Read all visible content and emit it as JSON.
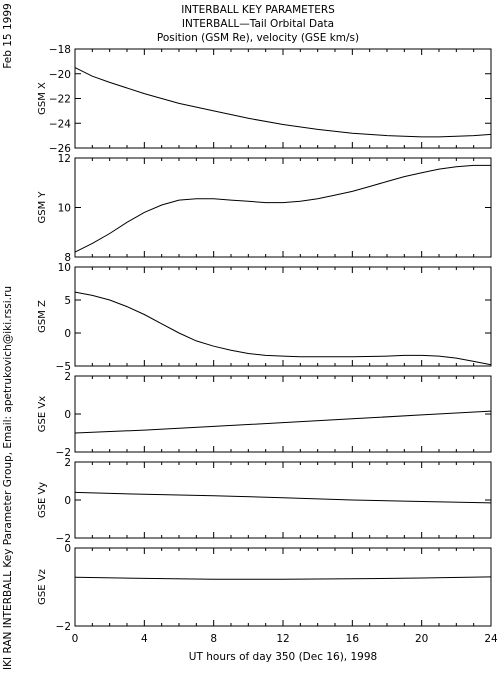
{
  "page": {
    "title_lines": [
      "INTERBALL KEY PARAMETERS",
      "INTERBALL—Tail Orbital Data",
      "Position (GSM Re), velocity (GSE km/s)"
    ],
    "date_label": "Feb 15 1999",
    "credit": "IKI RAN INTERBALL Key Parameter Group, Email: apetrukovich@iki.rssi.ru"
  },
  "chart_data": [
    {
      "type": "line",
      "ylabel": "GSM X",
      "ylim": [
        -26,
        -18
      ],
      "yticks": [
        -26,
        -24,
        -22,
        -20,
        -18
      ],
      "ytick_labels": [
        "−26",
        "−24",
        "−22",
        "−20",
        "−18"
      ],
      "series": [
        {
          "x": [
            0,
            1,
            2,
            4,
            6,
            8,
            10,
            12,
            14,
            16,
            18,
            20,
            21,
            22,
            23,
            24
          ],
          "y": [
            -19.5,
            -20.2,
            -20.7,
            -21.6,
            -22.4,
            -23.0,
            -23.6,
            -24.1,
            -24.5,
            -24.8,
            -25.0,
            -25.1,
            -25.1,
            -25.05,
            -25.0,
            -24.9
          ]
        }
      ]
    },
    {
      "type": "line",
      "ylabel": "GSM Y",
      "ylim": [
        8,
        12
      ],
      "yticks": [
        8,
        10,
        12
      ],
      "ytick_labels": [
        "8",
        "10",
        "12"
      ],
      "series": [
        {
          "x": [
            0,
            1,
            2,
            3,
            4,
            5,
            6,
            7,
            8,
            9,
            10,
            11,
            12,
            13,
            14,
            15,
            16,
            17,
            18,
            19,
            20,
            21,
            22,
            23,
            24
          ],
          "y": [
            8.2,
            8.55,
            8.95,
            9.4,
            9.8,
            10.1,
            10.3,
            10.35,
            10.35,
            10.3,
            10.25,
            10.2,
            10.2,
            10.25,
            10.35,
            10.5,
            10.65,
            10.85,
            11.05,
            11.25,
            11.4,
            11.55,
            11.65,
            11.7,
            11.7
          ]
        }
      ]
    },
    {
      "type": "line",
      "ylabel": "GSM Z",
      "ylim": [
        -5,
        10
      ],
      "yticks": [
        -5,
        0,
        5,
        10
      ],
      "ytick_labels": [
        "−5",
        "0",
        "5",
        "10"
      ],
      "series": [
        {
          "x": [
            0,
            1,
            2,
            3,
            4,
            5,
            6,
            7,
            8,
            9,
            10,
            11,
            12,
            13,
            14,
            16,
            18,
            19,
            20,
            21,
            22,
            23,
            24
          ],
          "y": [
            6.2,
            5.7,
            5.0,
            4.0,
            2.8,
            1.4,
            0.0,
            -1.2,
            -2.0,
            -2.6,
            -3.1,
            -3.4,
            -3.5,
            -3.6,
            -3.6,
            -3.6,
            -3.5,
            -3.4,
            -3.4,
            -3.5,
            -3.8,
            -4.3,
            -4.8
          ]
        }
      ]
    },
    {
      "type": "line",
      "ylabel": "GSE Vx",
      "ylim": [
        -2,
        2
      ],
      "yticks": [
        -2,
        0,
        2
      ],
      "ytick_labels": [
        "−2",
        "0",
        "2"
      ],
      "series": [
        {
          "x": [
            0,
            4,
            8,
            12,
            16,
            20,
            24
          ],
          "y": [
            -1.0,
            -0.85,
            -0.65,
            -0.45,
            -0.25,
            -0.05,
            0.15
          ]
        }
      ]
    },
    {
      "type": "line",
      "ylabel": "GSE Vy",
      "ylim": [
        -2,
        2
      ],
      "yticks": [
        -2,
        0,
        2
      ],
      "ytick_labels": [
        "−2",
        "0",
        "2"
      ],
      "series": [
        {
          "x": [
            0,
            4,
            8,
            12,
            16,
            20,
            24
          ],
          "y": [
            0.4,
            0.3,
            0.22,
            0.12,
            0.0,
            -0.08,
            -0.15
          ]
        }
      ]
    },
    {
      "type": "line",
      "ylabel": "GSE Vz",
      "ylim": [
        -2,
        0
      ],
      "yticks": [
        -2,
        0
      ],
      "ytick_labels": [
        "−2",
        "0"
      ],
      "series": [
        {
          "x": [
            0,
            4,
            8,
            12,
            16,
            20,
            24
          ],
          "y": [
            -0.75,
            -0.78,
            -0.8,
            -0.8,
            -0.79,
            -0.77,
            -0.74
          ]
        }
      ]
    }
  ],
  "xaxis": {
    "xlim": [
      0,
      24
    ],
    "ticks": [
      0,
      4,
      8,
      12,
      16,
      20,
      24
    ],
    "tick_labels": [
      "0",
      "4",
      "8",
      "12",
      "16",
      "20",
      "24"
    ],
    "minor_ticks": [
      1,
      2,
      3,
      5,
      6,
      7,
      9,
      10,
      11,
      13,
      14,
      15,
      17,
      18,
      19,
      21,
      22,
      23
    ],
    "xlabel": "UT hours of day 350 (Dec 16), 1998"
  }
}
